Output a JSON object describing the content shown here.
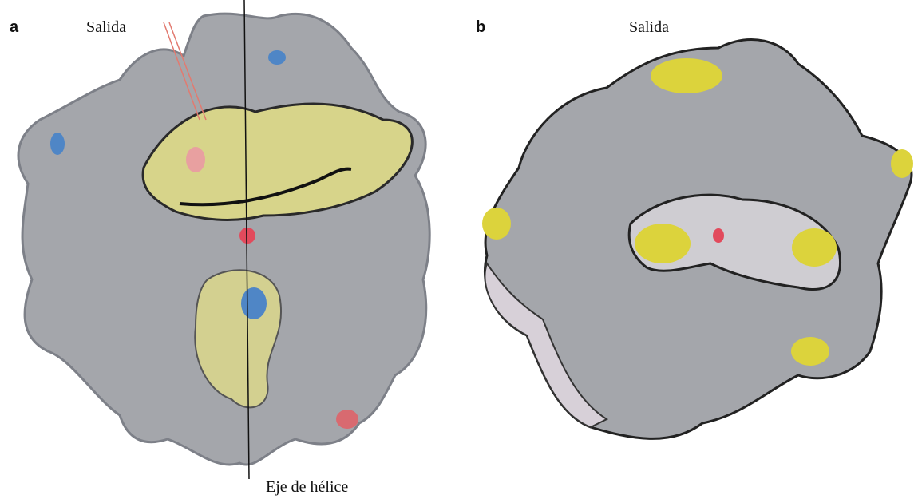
{
  "panels": [
    {
      "label": "a",
      "exit_label": "Salida",
      "axis_label": "Eje de hélice"
    },
    {
      "label": "b",
      "exit_label": "Salida"
    }
  ]
}
